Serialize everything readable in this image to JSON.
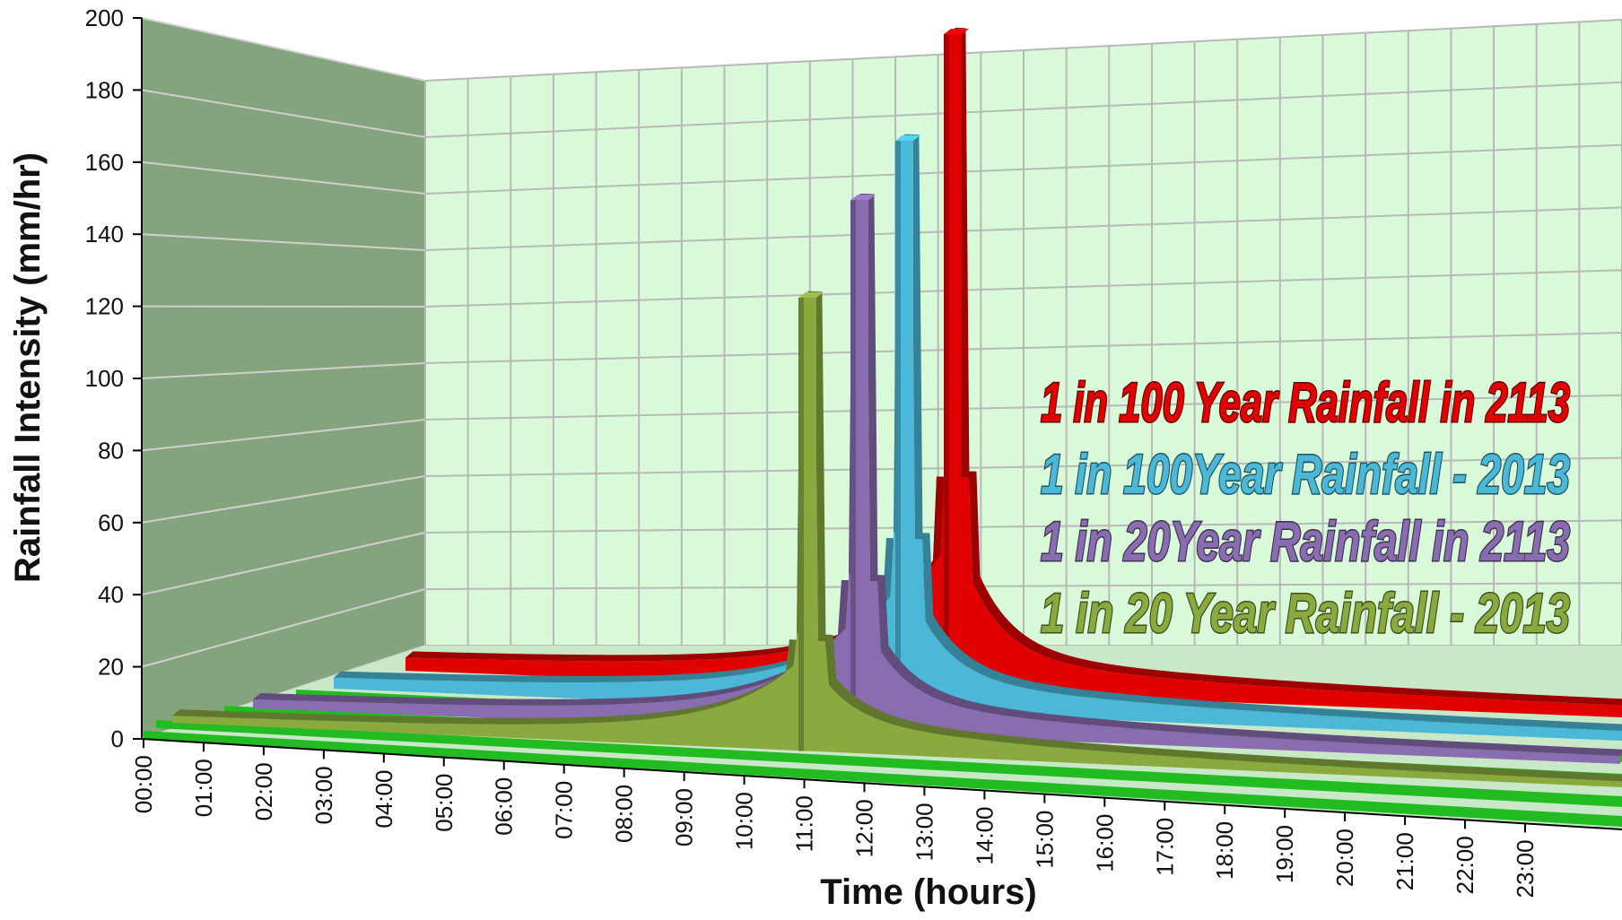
{
  "chart_data": {
    "type": "bar",
    "variant": "3d-column-series",
    "xlabel": "Time (hours)",
    "ylabel": "Rainfall Intensity (mm/hr)",
    "ylim": [
      0,
      200
    ],
    "y_ticks": [
      "0",
      "20",
      "40",
      "60",
      "80",
      "100",
      "120",
      "140",
      "160",
      "180",
      "200"
    ],
    "x_ticks": [
      "00:00",
      "01:00",
      "02:00",
      "03:00",
      "04:00",
      "05:00",
      "06:00",
      "07:00",
      "08:00",
      "09:00",
      "10:00",
      "11:00",
      "12:00",
      "13:00",
      "14:00",
      "15:00",
      "16:00",
      "17:00",
      "18:00",
      "19:00",
      "20:00",
      "21:00",
      "22:00",
      "23:00"
    ],
    "grid": true,
    "legend_position": "right",
    "series": [
      {
        "name": "1 in 100 Year Rainfall in 2113",
        "color": "#e00000",
        "peak_time": "12:00",
        "peak_value": 190,
        "secondary_value": 62,
        "base_value": 3
      },
      {
        "name": "1 in 100Year Rainfall - 2013",
        "color": "#4bb8d8",
        "peak_time": "12:00",
        "peak_value": 165,
        "secondary_value": 50,
        "base_value": 2.5
      },
      {
        "name": "1 in 20Year Rainfall in 2113",
        "color": "#8a6cb0",
        "peak_time": "12:00",
        "peak_value": 154,
        "secondary_value": 44,
        "base_value": 2
      },
      {
        "name": "1 in 20 Year Rainfall - 2013",
        "color": "#8aaa40",
        "peak_time": "12:00",
        "peak_value": 131,
        "secondary_value": 32,
        "base_value": 1.5
      }
    ],
    "colors": {
      "back_wall": "#d8fad8",
      "side_wall": "#84a47e",
      "grid_line": "#b8b8b8",
      "floor_stripe": "#22bb22"
    }
  }
}
